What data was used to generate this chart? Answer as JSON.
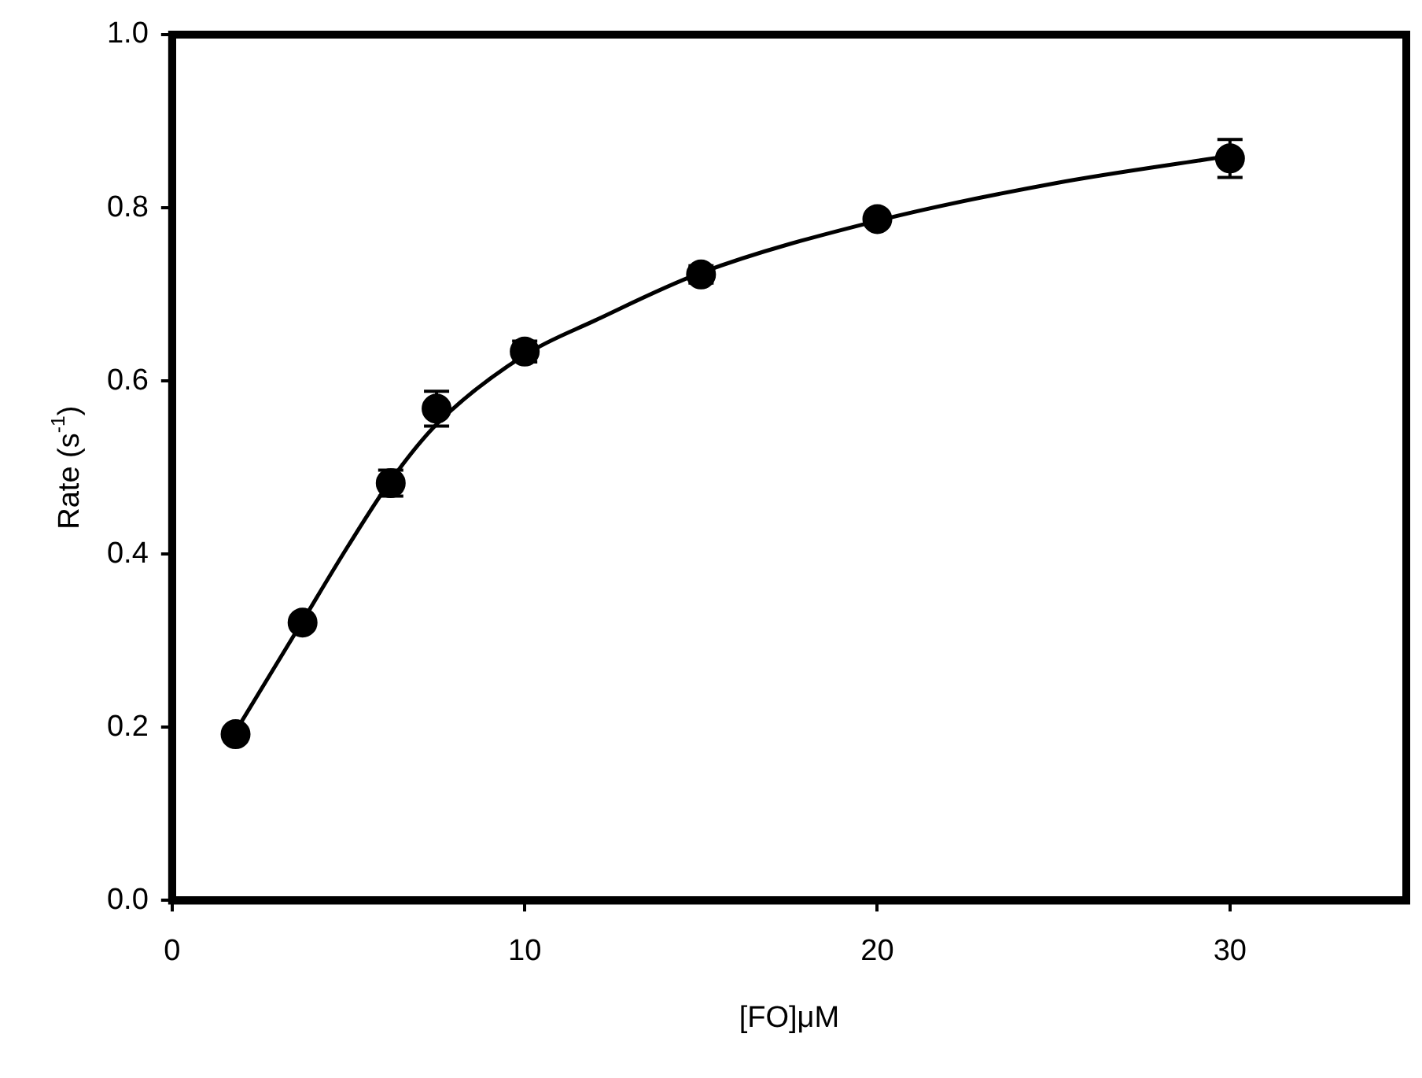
{
  "chart_data": {
    "type": "scatter",
    "xlabel": "[FO]μM",
    "ylabel": "Rate (s$^{-1}$)",
    "xlim": [
      0,
      35
    ],
    "ylim": [
      0,
      1
    ],
    "xticks": [
      0,
      10,
      20,
      30
    ],
    "yticks": [
      {
        "value": 0,
        "label": "0.0"
      },
      {
        "value": 0.2,
        "label": "0.2"
      },
      {
        "value": 0.4,
        "label": "0.4"
      },
      {
        "value": 0.6,
        "label": "0.6"
      },
      {
        "value": 0.8,
        "label": "0.8"
      },
      {
        "value": 1,
        "label": "1.0"
      }
    ],
    "series": [
      {
        "type": "scatter",
        "color": "#000000",
        "marker": "circle",
        "x": [
          1.8,
          3.7,
          6.2,
          7.5,
          10,
          15,
          20,
          30
        ],
        "values": [
          0.192,
          0.321,
          0.482,
          0.568,
          0.634,
          0.723,
          0.787,
          0.857
        ],
        "errors": [
          null,
          null,
          0.015,
          0.02,
          0.012,
          0.01,
          null,
          0.022
        ]
      },
      {
        "type": "line",
        "color": "#000000",
        "marker": "none",
        "line_style": "solid",
        "x": [
          1.9,
          3.6,
          5,
          6.2,
          7.5,
          10,
          12,
          15,
          20,
          25,
          30
        ],
        "values": [
          0.202,
          0.316,
          0.41,
          0.485,
          0.55,
          0.63,
          0.67,
          0.725,
          0.785,
          0.828,
          0.86
        ]
      }
    ]
  }
}
